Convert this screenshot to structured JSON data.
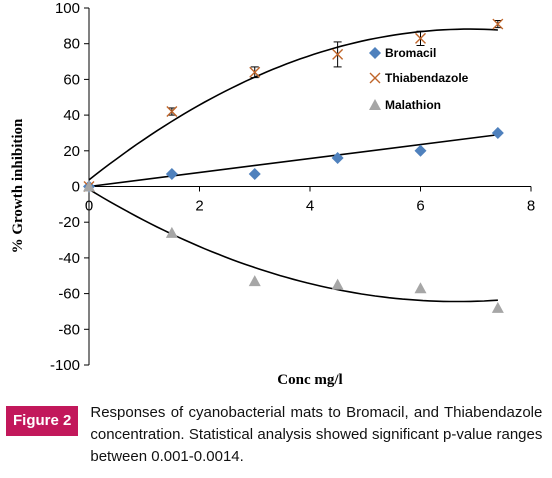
{
  "chart_data": {
    "type": "scatter",
    "xlabel": "Conc mg/l",
    "ylabel": "% Growth inhibition",
    "xlim": [
      0,
      8
    ],
    "ylim": [
      -100,
      100
    ],
    "xticks": [
      "0",
      "2",
      "4",
      "6",
      "8"
    ],
    "yticks": [
      "100",
      "80",
      "60",
      "40",
      "20",
      "0",
      "-20",
      "-40",
      "-60",
      "-80",
      "-100"
    ],
    "grid": false,
    "legend_position": "right",
    "series": [
      {
        "name": "Bromacil",
        "marker": "diamond",
        "color": "#4f81bd",
        "x": [
          0,
          1.5,
          3,
          4.5,
          6,
          7.4
        ],
        "y": [
          0,
          7,
          7,
          16,
          20,
          30
        ],
        "trend": "linear",
        "trend_end": 29
      },
      {
        "name": "Thiabendazole",
        "marker": "cross",
        "color": "#c0652a",
        "x": [
          0,
          1.5,
          3,
          4.5,
          6,
          7.4
        ],
        "y": [
          0,
          42,
          64,
          74,
          83,
          91
        ],
        "error": [
          0,
          2,
          3,
          7,
          4,
          2
        ],
        "trend": "polynomial"
      },
      {
        "name": "Malathion",
        "marker": "triangle",
        "color": "#a6a6a6",
        "x": [
          0,
          1.5,
          3,
          4.5,
          6,
          7.4
        ],
        "y": [
          0,
          -26,
          -53,
          -55,
          -57,
          -68
        ],
        "trend": "polynomial"
      }
    ]
  },
  "caption": {
    "label": "Figure 2",
    "text": "Responses of cyanobacterial mats to Bromacil, and Thiabendazole concentration. Statistical analysis showed significant p-value ranges between 0.001-0.0014."
  }
}
